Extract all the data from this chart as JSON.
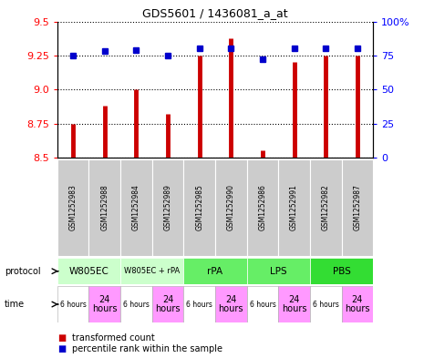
{
  "title": "GDS5601 / 1436081_a_at",
  "samples": [
    "GSM1252983",
    "GSM1252988",
    "GSM1252984",
    "GSM1252989",
    "GSM1252985",
    "GSM1252990",
    "GSM1252986",
    "GSM1252991",
    "GSM1252982",
    "GSM1252987"
  ],
  "transformed_count": [
    8.75,
    8.88,
    9.0,
    8.82,
    9.25,
    9.38,
    8.55,
    9.2,
    9.25,
    9.25
  ],
  "percentile_rank": [
    75,
    78,
    79,
    75,
    80,
    80,
    72,
    80,
    80,
    80
  ],
  "ylim_left": [
    8.5,
    9.5
  ],
  "ylim_right": [
    0,
    100
  ],
  "yticks_left": [
    8.5,
    8.75,
    9.0,
    9.25,
    9.5
  ],
  "yticks_right": [
    0,
    25,
    50,
    75,
    100
  ],
  "bar_color": "#cc0000",
  "dot_color": "#0000cc",
  "protocol_groups": [
    {
      "label": "W805EC",
      "start": 0,
      "end": 1,
      "color": "#ccffcc"
    },
    {
      "label": "W805EC + rPA",
      "start": 2,
      "end": 3,
      "color": "#ccffcc"
    },
    {
      "label": "rPA",
      "start": 4,
      "end": 5,
      "color": "#66ee66"
    },
    {
      "label": "LPS",
      "start": 6,
      "end": 7,
      "color": "#66ee66"
    },
    {
      "label": "PBS",
      "start": 8,
      "end": 9,
      "color": "#33dd33"
    }
  ],
  "times_is_24h": [
    false,
    true,
    false,
    true,
    false,
    true,
    false,
    true,
    false,
    true
  ],
  "sample_bg_color": "#cccccc",
  "time_6h_color": "#ffffff",
  "time_24h_color": "#ff99ff"
}
